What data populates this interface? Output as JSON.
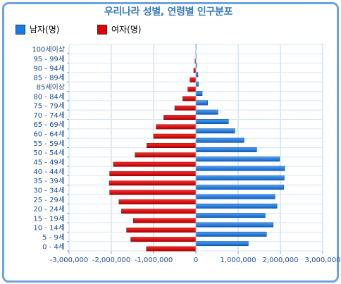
{
  "chart_data": {
    "type": "bar",
    "orientation": "horizontal",
    "title": "우리나라 성별, 연령별 인구분포",
    "categories": [
      "0 - 4세",
      "5 - 9세",
      "10 - 14세",
      "15 - 19세",
      "20 - 24세",
      "25 - 29세",
      "30 - 34세",
      "35 - 39세",
      "40 - 44세",
      "45 - 49세",
      "50 - 54세",
      "55 - 59세",
      "60 - 64세",
      "65 - 69세",
      "70 - 74세",
      "75 - 79세",
      "80 - 84세",
      "85세이상",
      "85 - 89세",
      "90 - 94세",
      "95 - 99세",
      "100세이상"
    ],
    "series": [
      {
        "name": "남자(명)",
        "color": "#1b7be3",
        "values": [
          1240000,
          1670000,
          1830000,
          1640000,
          1920000,
          1870000,
          2080000,
          2090000,
          2100000,
          1980000,
          1440000,
          1140000,
          920000,
          770000,
          520000,
          280000,
          150000,
          60000,
          50000,
          20000,
          5000,
          2000
        ]
      },
      {
        "name": "여자(명)",
        "color": "#e00000",
        "values": [
          -1170000,
          -1540000,
          -1640000,
          -1480000,
          -1760000,
          -1820000,
          -2040000,
          -2050000,
          -2040000,
          -1950000,
          -1440000,
          -1160000,
          -1000000,
          -940000,
          -760000,
          -500000,
          -310000,
          -190000,
          -140000,
          -50000,
          -20000,
          -5000
        ]
      }
    ],
    "xlim": [
      -3000000,
      3000000
    ],
    "xticks": [
      "-3,000,000",
      "-2,000,000",
      "-1,000,000",
      "0",
      "1,000,000",
      "2,000,000",
      "3,000,000"
    ],
    "legend_position": "top-left",
    "grid": true
  }
}
